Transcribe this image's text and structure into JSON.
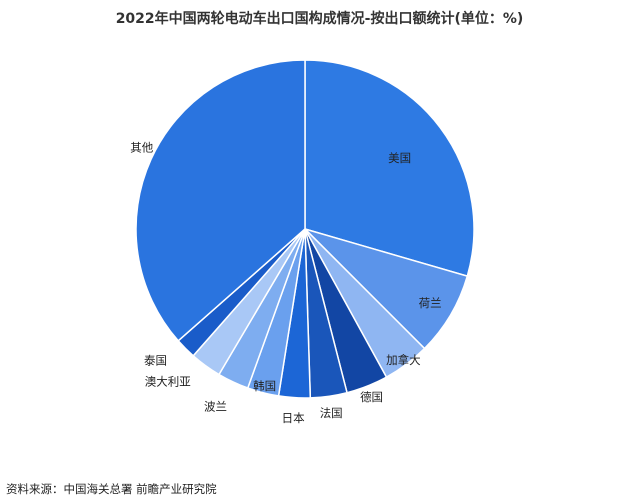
{
  "chart_data": {
    "type": "pie",
    "title": "2022年中国两轮电动车出口国构成情况-按出口额统计(单位：%)",
    "categories": [
      "美国",
      "荷兰",
      "加拿大",
      "德国",
      "法国",
      "日本",
      "韩国",
      "波兰",
      "澳大利亚",
      "泰国",
      "其他"
    ],
    "values": [
      29.5,
      8.0,
      4.5,
      4.0,
      3.5,
      3.0,
      3.0,
      3.0,
      3.0,
      2.0,
      36.5
    ],
    "colors": [
      "#2e7ae3",
      "#5b94ea",
      "#8fb6f2",
      "#1246a4",
      "#1a56ba",
      "#1c66d6",
      "#6aa0ee",
      "#7eadf0",
      "#a9c8f6",
      "#1a5cc9",
      "#2a74df"
    ],
    "legend": "none",
    "data_labels": false
  },
  "source": "资料来源：中国海关总署 前瞻产业研究院"
}
